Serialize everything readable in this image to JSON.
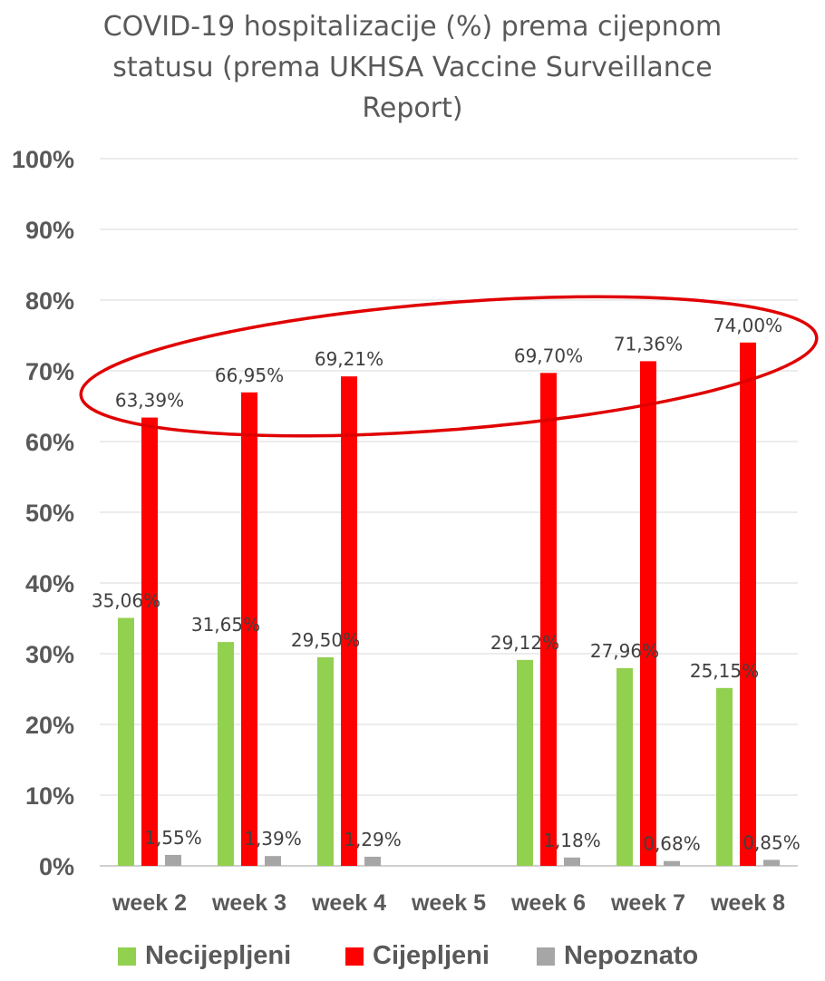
{
  "chart_data": {
    "type": "bar",
    "title_lines": [
      "COVID-19 hospitalizacije (%) prema cijepnom",
      "statusu (prema UKHSA Vaccine Surveillance",
      "Report)"
    ],
    "categories": [
      "week 2",
      "week 3",
      "week 4",
      "week 5",
      "week 6",
      "week 7",
      "week 8"
    ],
    "series": [
      {
        "name": "Necijepljeni",
        "color": "#92D050",
        "values": [
          35.06,
          31.65,
          29.5,
          null,
          29.12,
          27.96,
          25.15
        ],
        "labels": [
          "35,06%",
          "31,65%",
          "29,50%",
          "",
          "29,12%",
          "27,96%",
          "25,15%"
        ]
      },
      {
        "name": "Cijepljeni",
        "color": "#FF0000",
        "values": [
          63.39,
          66.95,
          69.21,
          null,
          69.7,
          71.36,
          74.0
        ],
        "labels": [
          "63,39%",
          "66,95%",
          "69,21%",
          "",
          "69,70%",
          "71,36%",
          "74,00%"
        ]
      },
      {
        "name": "Nepoznato",
        "color": "#A6A6A6",
        "values": [
          1.55,
          1.39,
          1.29,
          null,
          1.18,
          0.68,
          0.85
        ],
        "labels": [
          "1,55%",
          "1,39%",
          "1,29%",
          "",
          "1,18%",
          "0,68%",
          "0,85%"
        ]
      }
    ],
    "y_ticks": [
      "0%",
      "10%",
      "20%",
      "30%",
      "40%",
      "50%",
      "60%",
      "70%",
      "80%",
      "90%",
      "100%"
    ],
    "ylim": [
      0,
      100
    ],
    "grid": true,
    "legend_position": "bottom",
    "annotation": {
      "shape": "ellipse",
      "color": "#E00000",
      "encloses": "Cijepljeni"
    }
  }
}
